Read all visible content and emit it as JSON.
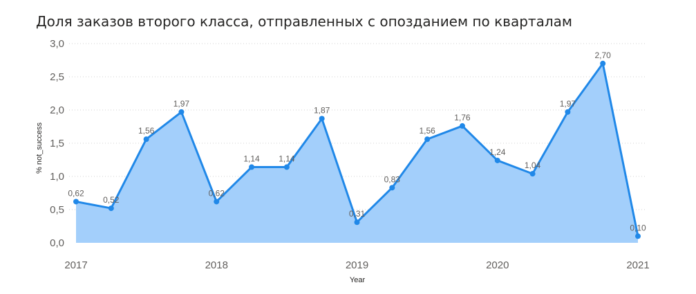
{
  "chart_data": {
    "type": "area",
    "title": "Доля заказов второго класса, отправленных с опозданием по кварталам",
    "xlabel": "Year",
    "ylabel": "% not_success",
    "ylim": [
      0,
      3
    ],
    "yticks": [
      "0,0",
      "0,5",
      "1,0",
      "1,5",
      "2,0",
      "2,5",
      "3,0"
    ],
    "xtick_labels": [
      "2017",
      "2018",
      "2019",
      "2020",
      "2021"
    ],
    "x": [
      "2017 Q1",
      "2017 Q2",
      "2017 Q3",
      "2017 Q4",
      "2018 Q1",
      "2018 Q2",
      "2018 Q3",
      "2018 Q4",
      "2019 Q1",
      "2019 Q2",
      "2019 Q3",
      "2019 Q4",
      "2020 Q1",
      "2020 Q2",
      "2020 Q3",
      "2020 Q4",
      "2021 Q1"
    ],
    "values": [
      0.62,
      0.52,
      1.56,
      1.97,
      0.62,
      1.14,
      1.14,
      1.87,
      0.31,
      0.83,
      1.56,
      1.76,
      1.24,
      1.04,
      1.97,
      2.7,
      0.1
    ],
    "data_labels": [
      "0,62",
      "0,52",
      "1,56",
      "1,97",
      "0,62",
      "1,14",
      "1,14",
      "1,87",
      "0,31",
      "0,83",
      "1,56",
      "1,76",
      "1,24",
      "1,04",
      "1,97",
      "2,70",
      "0,10"
    ],
    "grid": true,
    "legend": "none",
    "colors": {
      "line": "#2088E8",
      "fill": "#A3CFFB",
      "grid": "#d0d0d0"
    }
  }
}
